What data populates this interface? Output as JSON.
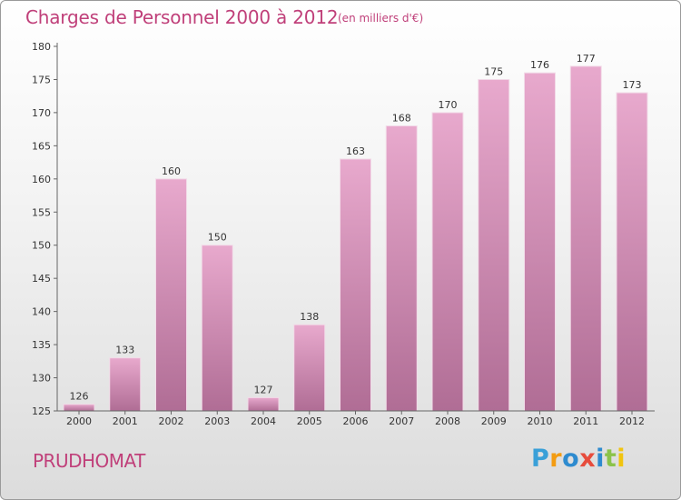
{
  "header": {
    "title": "Charges de Personnel 2000 à 2012",
    "subtitle": "(en milliers d'€)"
  },
  "footer": {
    "commune": "PRUDHOMAT",
    "logo": "Proxiti"
  },
  "colors": {
    "title": "#c0407a",
    "bar_top": "#e8a9cd",
    "bar_bottom": "#b06d95",
    "logo": [
      "#3aa0d8",
      "#f39c12",
      "#2e8bcf",
      "#e74c3c",
      "#2e8bcf",
      "#8bc34a",
      "#f1c40f"
    ]
  },
  "chart_data": {
    "type": "bar",
    "title": "Charges de Personnel 2000 à 2012",
    "subtitle": "(en milliers d'€)",
    "categories": [
      "2000",
      "2001",
      "2002",
      "2003",
      "2004",
      "2005",
      "2006",
      "2007",
      "2008",
      "2009",
      "2010",
      "2011",
      "2012"
    ],
    "values": [
      126,
      133,
      160,
      150,
      127,
      138,
      163,
      168,
      170,
      175,
      176,
      177,
      173
    ],
    "ylim": [
      125,
      180
    ],
    "yticks": [
      125,
      130,
      135,
      140,
      145,
      150,
      155,
      160,
      165,
      170,
      175,
      180
    ],
    "grid": false,
    "legend": "none"
  }
}
